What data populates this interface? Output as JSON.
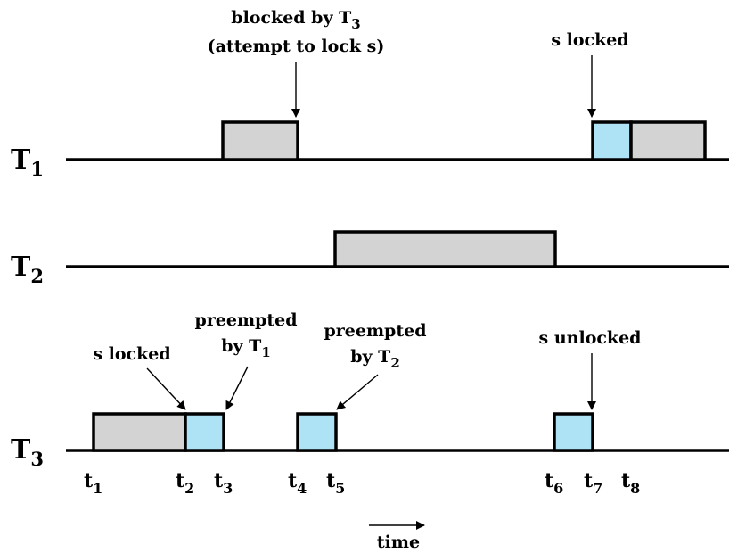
{
  "colors": {
    "normal_execution": "#d3d3d3",
    "critical_section": "#aee3f5",
    "stroke": "#000000"
  },
  "rows": [
    {
      "id": "t1",
      "base": "T",
      "sub": "1"
    },
    {
      "id": "t2",
      "base": "T",
      "sub": "2"
    },
    {
      "id": "t3",
      "base": "T",
      "sub": "3"
    }
  ],
  "ticks": [
    {
      "base": "t",
      "sub": "1"
    },
    {
      "base": "t",
      "sub": "2"
    },
    {
      "base": "t",
      "sub": "3"
    },
    {
      "base": "t",
      "sub": "4"
    },
    {
      "base": "t",
      "sub": "5"
    },
    {
      "base": "t",
      "sub": "6"
    },
    {
      "base": "t",
      "sub": "7"
    },
    {
      "base": "t",
      "sub": "8"
    }
  ],
  "annotations": {
    "blocked_line1": "blocked by T",
    "blocked_line1_sub": "3",
    "blocked_line2": "(attempt to lock s)",
    "t1_s_locked": "s locked",
    "t3_s_locked": "s locked",
    "preempted_by_t1_line1": "preempted",
    "preempted_by_t1_line2": "by T",
    "preempted_by_t1_sub": "1",
    "preempted_by_t2_line1": "preempted",
    "preempted_by_t2_line2": "by T",
    "preempted_by_t2_sub": "2",
    "s_unlocked": "s unlocked"
  },
  "time_label": "time"
}
